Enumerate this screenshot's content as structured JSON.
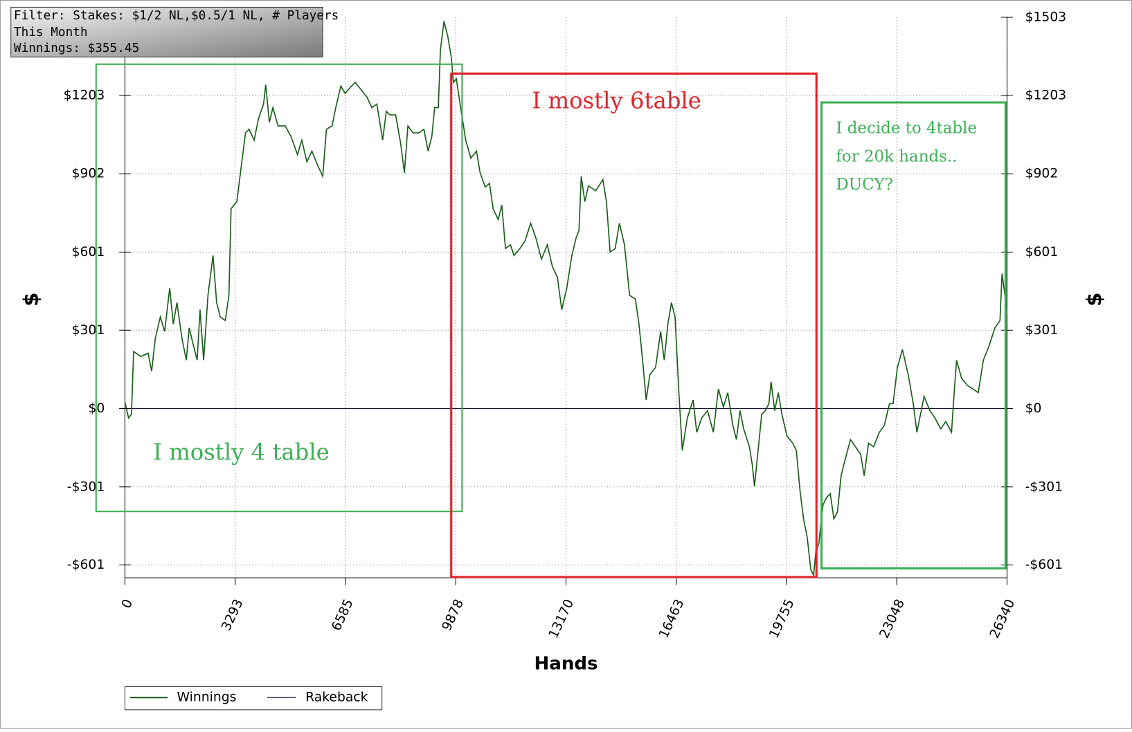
{
  "chart_data": {
    "type": "line",
    "filter_lines": [
      "Filter: Stakes: $1/2 NL,$0.5/1 NL, # Players",
      "This Month",
      "Winnings: $355.45"
    ],
    "annotations": [
      "I mostly 4 table",
      "I mostly 6table",
      "I decide to 4table",
      "for 20k hands..",
      "DUCY?"
    ],
    "x_label": "Hands",
    "y_label": "$",
    "y2_label": "$",
    "xlim": [
      0,
      26340
    ],
    "xticks": [
      0,
      3293,
      6585,
      9878,
      13170,
      16463,
      19755,
      23048,
      26340
    ],
    "ylim": [
      -650,
      1503
    ],
    "yticks": [
      {
        "value": -601,
        "label": "-$601"
      },
      {
        "value": -301,
        "label": "-$301"
      },
      {
        "value": 0,
        "label": "$0"
      },
      {
        "value": 301,
        "label": "$301"
      },
      {
        "value": 601,
        "label": "$601"
      },
      {
        "value": 902,
        "label": "$902"
      },
      {
        "value": 1203,
        "label": "$1203"
      }
    ],
    "y2lim": [
      -650,
      1503
    ],
    "y2ticks": [
      {
        "value": -601,
        "label": "-$601"
      },
      {
        "value": -301,
        "label": "-$301"
      },
      {
        "value": 0,
        "label": "$0"
      },
      {
        "value": 301,
        "label": "$301"
      },
      {
        "value": 601,
        "label": "$601"
      },
      {
        "value": 902,
        "label": "$902"
      },
      {
        "value": 1203,
        "label": "$1203"
      },
      {
        "value": 1503,
        "label": "$1503"
      }
    ],
    "grid": true,
    "series": [
      {
        "name": "Winnings",
        "color": "#1b5e1b",
        "x": [
          0,
          108,
          194,
          259,
          474,
          690,
          798,
          905,
          1056,
          1186,
          1337,
          1444,
          1552,
          1703,
          1832,
          1919,
          2048,
          2156,
          2242,
          2350,
          2479,
          2630,
          2738,
          2846,
          2996,
          3104,
          3169,
          3341,
          3449,
          3600,
          3708,
          3859,
          3988,
          4139,
          4204,
          4311,
          4419,
          4570,
          4786,
          4958,
          5152,
          5281,
          5432,
          5583,
          5756,
          5907,
          6015,
          6187,
          6295,
          6446,
          6575,
          6726,
          6877,
          7049,
          7222,
          7373,
          7523,
          7696,
          7804,
          7911,
          8084,
          8235,
          8343,
          8450,
          8601,
          8774,
          8925,
          9054,
          9162,
          9248,
          9356,
          9420,
          9528,
          9636,
          9744,
          9808,
          9895,
          10024,
          10175,
          10326,
          10498,
          10606,
          10757,
          10886,
          10994,
          11145,
          11253,
          11361,
          11511,
          11619,
          11792,
          11943,
          12115,
          12266,
          12438,
          12611,
          12762,
          12913,
          13042,
          13193,
          13344,
          13473,
          13559,
          13624,
          13732,
          13840,
          14055,
          14271,
          14378,
          14486,
          14637,
          14766,
          14917,
          15068,
          15241,
          15349,
          15456,
          15564,
          15672,
          15844,
          15995,
          16103,
          16211,
          16319,
          16426,
          16534,
          16642,
          16793,
          16965,
          17073,
          17224,
          17397,
          17569,
          17720,
          17871,
          18000,
          18151,
          18259,
          18367,
          18474,
          18647,
          18733,
          18798,
          18906,
          19013,
          19121,
          19229,
          19293,
          19401,
          19509,
          19617,
          19768,
          19940,
          20048,
          20156,
          20264,
          20371,
          20479,
          20565,
          20630,
          20716,
          20846,
          20953,
          21061,
          21169,
          21277,
          21385,
          21492,
          21665,
          21816,
          21967,
          22074,
          22204,
          22355,
          22527,
          22678,
          22829,
          22937,
          23066,
          23217,
          23389,
          23540,
          23648,
          23756,
          23864,
          24036,
          24187,
          24360,
          24511,
          24683,
          24769,
          24834,
          24985,
          25157,
          25330,
          25481,
          25632,
          25804,
          25977,
          26128,
          26192,
          26278,
          26340
        ],
        "values": [
          25,
          -36,
          -22,
          219,
          200,
          213,
          144,
          269,
          352,
          296,
          463,
          324,
          407,
          269,
          186,
          310,
          241,
          186,
          380,
          186,
          435,
          588,
          407,
          352,
          338,
          435,
          768,
          795,
          906,
          1059,
          1073,
          1031,
          1114,
          1170,
          1244,
          1100,
          1156,
          1086,
          1086,
          1045,
          976,
          1031,
          948,
          989,
          934,
          892,
          1073,
          1086,
          1156,
          1239,
          1211,
          1233,
          1253,
          1225,
          1197,
          1156,
          1170,
          1031,
          1142,
          1128,
          1128,
          1017,
          906,
          1086,
          1059,
          1059,
          1073,
          989,
          1045,
          1156,
          1156,
          1377,
          1488,
          1433,
          1350,
          1253,
          1267,
          1156,
          1031,
          962,
          989,
          906,
          851,
          865,
          768,
          726,
          782,
          615,
          629,
          588,
          615,
          643,
          712,
          657,
          574,
          629,
          546,
          504,
          380,
          463,
          588,
          657,
          685,
          892,
          795,
          856,
          837,
          879,
          795,
          601,
          615,
          712,
          629,
          435,
          421,
          324,
          186,
          33,
          130,
          158,
          296,
          186,
          324,
          407,
          352,
          75,
          -161,
          -36,
          33,
          -91,
          -36,
          -8,
          -91,
          75,
          6,
          61,
          -64,
          -119,
          -8,
          -78,
          -147,
          -216,
          -299,
          -161,
          -22,
          -8,
          19,
          103,
          -8,
          61,
          -22,
          -105,
          -133,
          -161,
          -313,
          -424,
          -493,
          -618,
          -640,
          -549,
          -521,
          -369,
          -341,
          -327,
          -424,
          -396,
          -258,
          -202,
          -119,
          -147,
          -175,
          -258,
          -133,
          -147,
          -91,
          -64,
          19,
          19,
          158,
          227,
          130,
          19,
          -91,
          -22,
          47,
          -8,
          -36,
          -78,
          -50,
          -91,
          75,
          186,
          116,
          89,
          75,
          61,
          186,
          241,
          310,
          338,
          518,
          435,
          355
        ]
      },
      {
        "name": "Rakeback",
        "color": "#101030",
        "x": [
          0,
          26340
        ],
        "values": [
          0,
          0
        ]
      }
    ]
  }
}
